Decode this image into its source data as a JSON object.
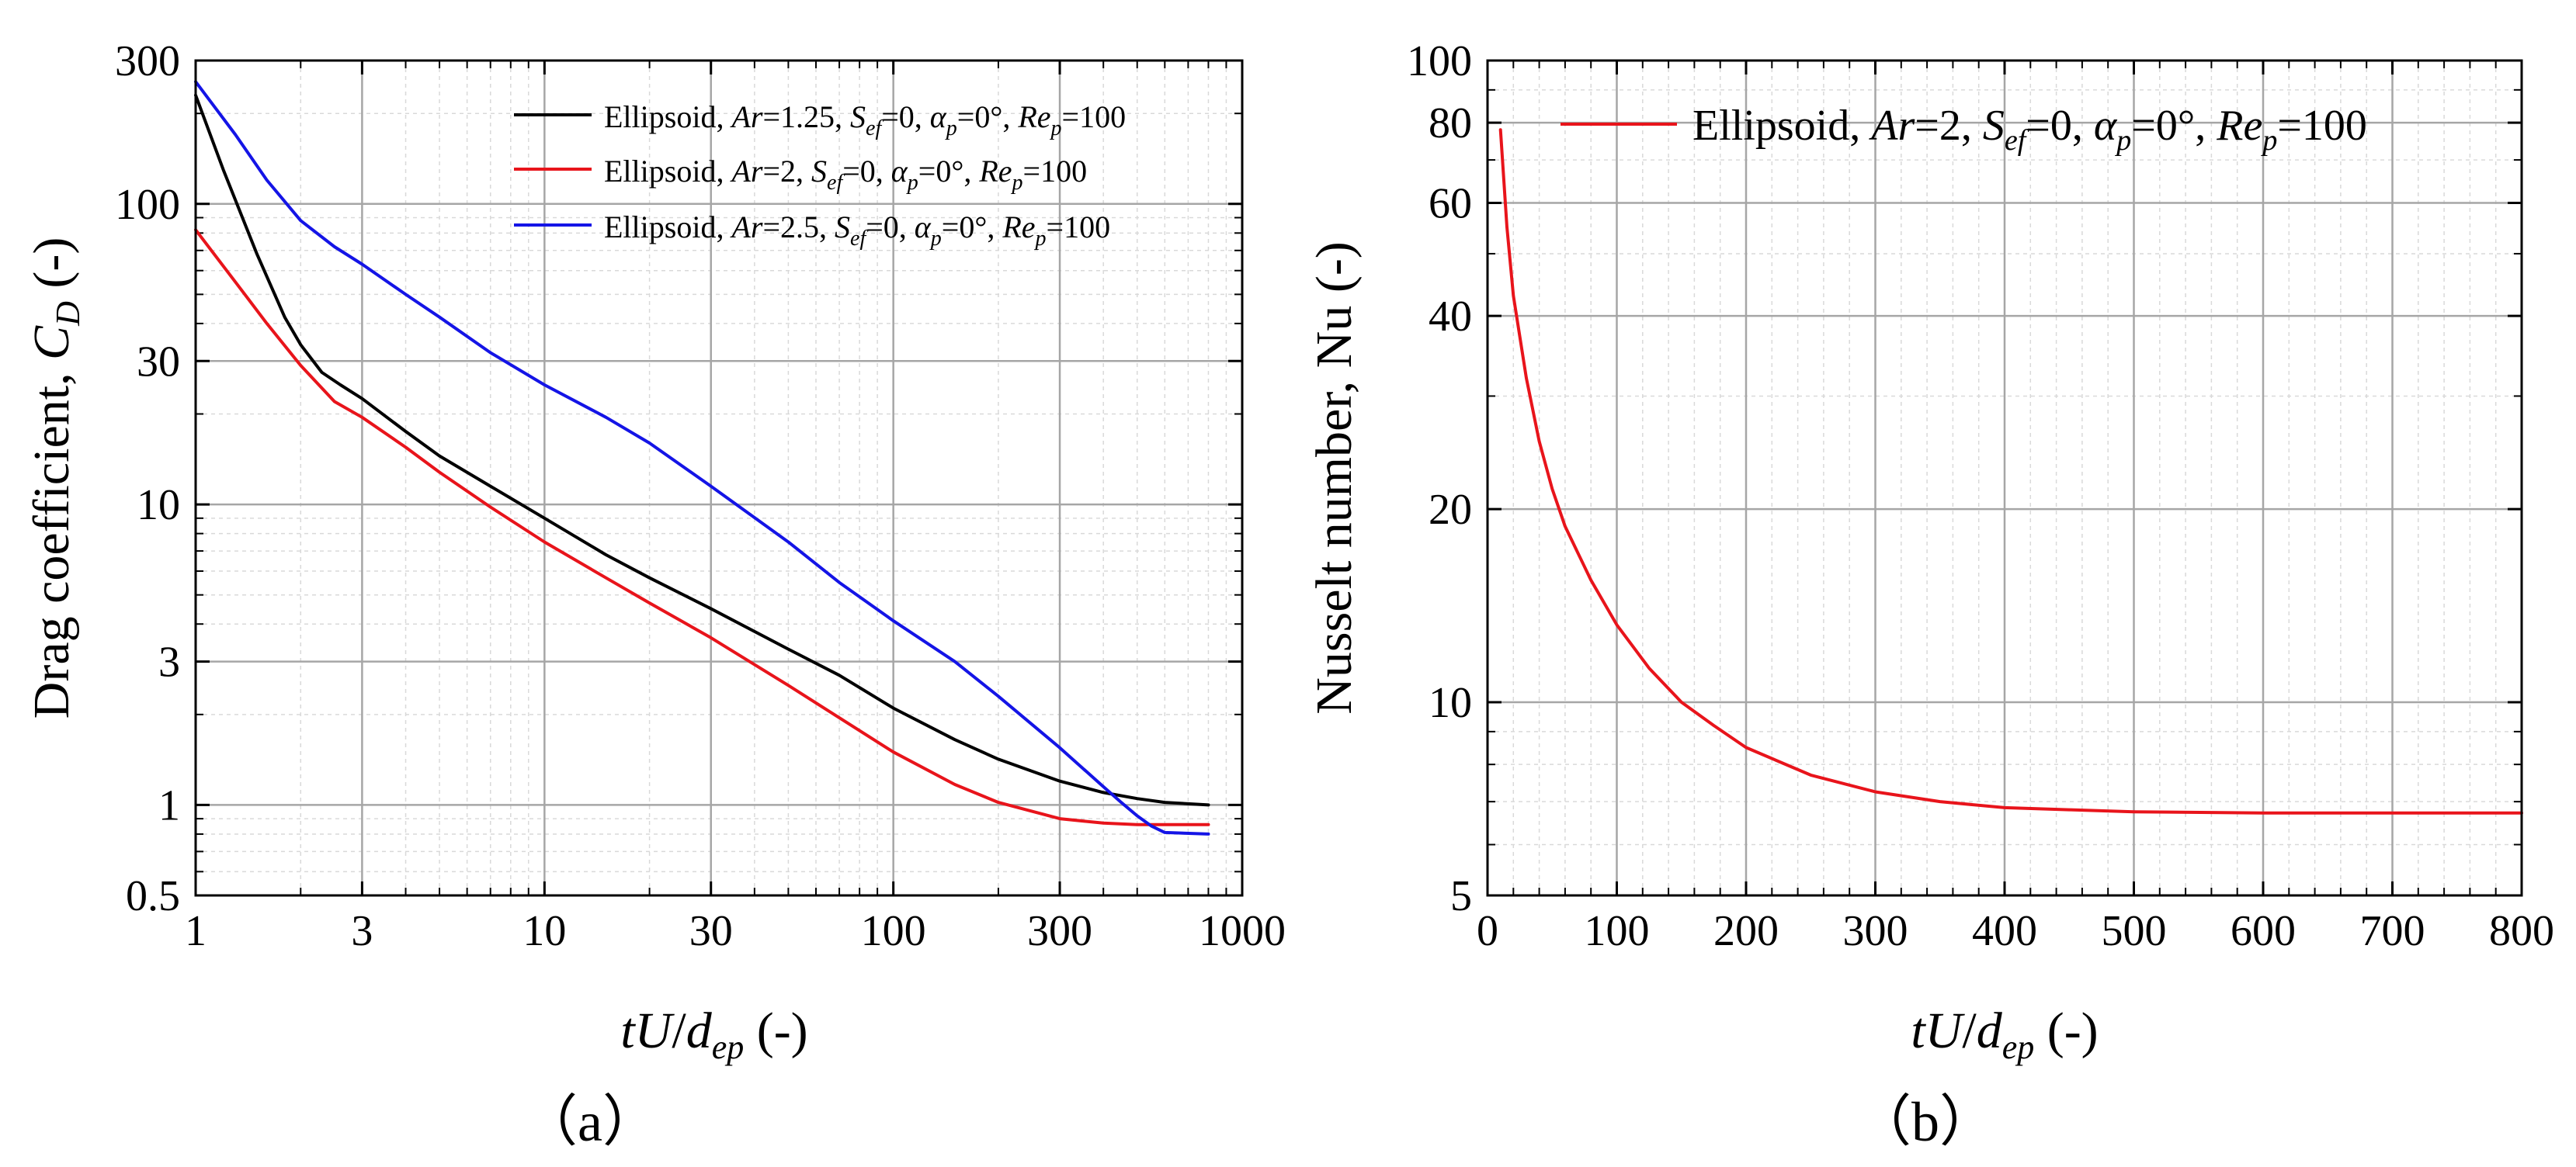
{
  "colors": {
    "black": "#000000",
    "red": "#e8141b",
    "blue": "#1414e6",
    "grid_major": "#a6a6a6",
    "grid_minor": "#d9d9d9"
  },
  "chart_data": [
    {
      "type": "line",
      "panel_label": "（a）",
      "xscale": "log",
      "yscale": "log",
      "xlim": [
        1,
        1000
      ],
      "ylim": [
        0.5,
        300
      ],
      "xticks": [
        1,
        3,
        10,
        30,
        100,
        300,
        1000
      ],
      "xtick_labels": [
        "1",
        "3",
        "10",
        "30",
        "100",
        "300",
        "1000"
      ],
      "yticks": [
        0.5,
        1,
        3,
        10,
        30,
        100,
        300
      ],
      "ytick_labels": [
        "0.5",
        "1",
        "3",
        "10",
        "30",
        "100",
        "300"
      ],
      "ylabel": {
        "prefix": "Drag coefficient, ",
        "sym": "C",
        "sub": "D",
        "suffix": " (-)"
      },
      "xlabel": {
        "sym": "tU",
        "slash": "/",
        "sym2": "d",
        "sub": "ep",
        "suffix": " (-)"
      },
      "legend_position": "top-right",
      "grid": true,
      "series": [
        {
          "name": "Ellipsoid, Ar=1.25, Sef=0, αp=0°, Rep=100",
          "legend": {
            "pre": "Ellipsoid, ",
            "ar": "1.25",
            "sef": "0",
            "ap": "0°",
            "rep": "100"
          },
          "color": "black",
          "x": [
            1,
            1.2,
            1.5,
            1.8,
            2,
            2.3,
            2.6,
            3,
            4,
            5,
            7,
            10,
            15,
            20,
            30,
            50,
            70,
            100,
            150,
            200,
            300,
            400,
            500,
            600,
            800
          ],
          "y": [
            230,
            130,
            68,
            42,
            34,
            27.5,
            25,
            22.5,
            17.5,
            14.5,
            11.5,
            9,
            6.8,
            5.7,
            4.5,
            3.3,
            2.7,
            2.1,
            1.65,
            1.42,
            1.2,
            1.1,
            1.05,
            1.02,
            1.0
          ]
        },
        {
          "name": "Ellipsoid, Ar=2, Sef=0, αp=0°, Rep=100",
          "legend": {
            "pre": "Ellipsoid, ",
            "ar": "2",
            "sef": "0",
            "ap": "0°",
            "rep": "100"
          },
          "color": "red",
          "x": [
            1,
            1.3,
            1.6,
            2,
            2.5,
            3,
            4,
            5,
            7,
            10,
            15,
            20,
            30,
            50,
            70,
            100,
            150,
            200,
            300,
            400,
            500,
            600,
            800
          ],
          "y": [
            82,
            55,
            40,
            29,
            22,
            19.5,
            15.5,
            12.8,
            9.8,
            7.5,
            5.7,
            4.7,
            3.6,
            2.5,
            1.95,
            1.5,
            1.17,
            1.02,
            0.9,
            0.87,
            0.86,
            0.86,
            0.86
          ]
        },
        {
          "name": "Ellipsoid, Ar=2.5, Sef=0, αp=0°, Rep=100",
          "legend": {
            "pre": "Ellipsoid, ",
            "ar": "2.5",
            "sef": "0",
            "ap": "0°",
            "rep": "100"
          },
          "color": "blue",
          "x": [
            1,
            1.3,
            1.6,
            2,
            2.5,
            3,
            4,
            5,
            7,
            10,
            15,
            20,
            30,
            50,
            70,
            100,
            150,
            200,
            300,
            400,
            450,
            500,
            550,
            600,
            800
          ],
          "y": [
            255,
            170,
            120,
            88,
            72,
            63,
            50,
            42,
            32,
            25,
            19.5,
            16,
            11.5,
            7.5,
            5.5,
            4.1,
            3.0,
            2.3,
            1.55,
            1.15,
            1.02,
            0.92,
            0.85,
            0.81,
            0.8
          ]
        }
      ]
    },
    {
      "type": "line",
      "panel_label": "（b）",
      "xscale": "linear",
      "yscale": "log",
      "xlim": [
        0,
        800
      ],
      "ylim": [
        5,
        100
      ],
      "xticks": [
        0,
        100,
        200,
        300,
        400,
        500,
        600,
        700,
        800
      ],
      "xtick_labels": [
        "0",
        "100",
        "200",
        "300",
        "400",
        "500",
        "600",
        "700",
        "800"
      ],
      "yticks": [
        5,
        10,
        20,
        40,
        60,
        80,
        100
      ],
      "ytick_labels": [
        "5",
        "10",
        "20",
        "40",
        "60",
        "80",
        "100"
      ],
      "ylabel": {
        "prefix": "Nusselt number, Nu (-)"
      },
      "xlabel": {
        "sym": "tU",
        "slash": "/",
        "sym2": "d",
        "sub": "ep",
        "suffix": " (-)"
      },
      "legend_position": "top-right",
      "grid": true,
      "series": [
        {
          "name": "Ellipsoid, Ar=2, Sef=0, αp=0°, Rep=100",
          "legend": {
            "pre": "Ellipsoid, ",
            "ar": "2",
            "sef": "0",
            "ap": "0°",
            "rep": "100"
          },
          "color": "red",
          "x": [
            10,
            15,
            20,
            30,
            40,
            50,
            60,
            80,
            100,
            125,
            150,
            175,
            200,
            250,
            300,
            350,
            400,
            450,
            500,
            600,
            700,
            800
          ],
          "y": [
            78,
            55,
            43,
            32,
            25.5,
            21.5,
            18.8,
            15.5,
            13.2,
            11.3,
            10.0,
            9.2,
            8.5,
            7.7,
            7.25,
            7.0,
            6.85,
            6.8,
            6.75,
            6.72,
            6.72,
            6.72
          ]
        }
      ]
    }
  ]
}
